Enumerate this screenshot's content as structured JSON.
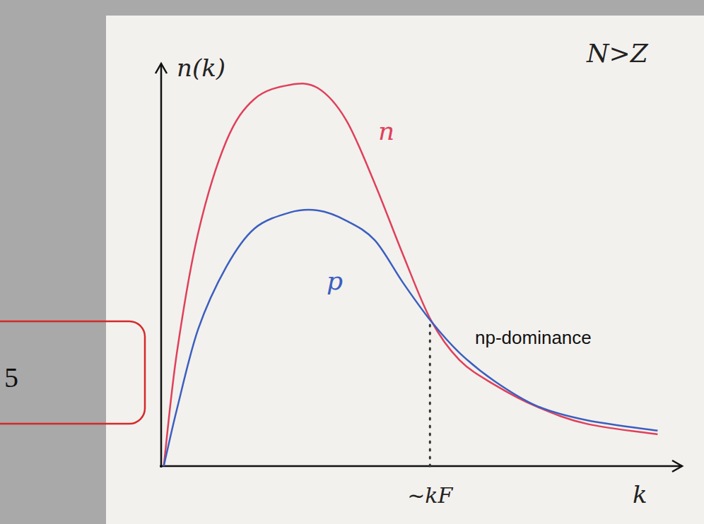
{
  "chart_data": {
    "type": "line",
    "x_label": "k",
    "y_label": "n(k)",
    "xlim": [
      0,
      10
    ],
    "ylim": [
      0,
      10
    ],
    "tick_labels": false,
    "grid": false,
    "x": [
      0.05,
      0.3,
      0.71,
      1.25,
      1.79,
      2.47,
      3.01,
      3.55,
      4.1,
      4.64,
      5.18,
      5.73,
      6.4,
      7.22,
      8.17,
      9.53
    ],
    "series": [
      {
        "name": "n",
        "color": "#e0405a",
        "values": [
          0,
          2.8,
          5.79,
          8.07,
          9.12,
          9.47,
          9.39,
          8.6,
          7.02,
          5.26,
          3.62,
          2.63,
          2.02,
          1.47,
          1.05,
          0.79
        ]
      },
      {
        "name": "p",
        "color": "#3b5fc0",
        "values": [
          0,
          1.4,
          3.4,
          4.95,
          5.9,
          6.3,
          6.35,
          6.1,
          5.61,
          4.56,
          3.6,
          2.81,
          2.11,
          1.49,
          1.14,
          0.88
        ]
      }
    ],
    "annotations": [
      {
        "text": "N>Z"
      },
      {
        "text": "np-dominance"
      },
      {
        "text": "~kF",
        "x": 5.16,
        "y": 3.6
      }
    ],
    "margin_note": "5"
  }
}
